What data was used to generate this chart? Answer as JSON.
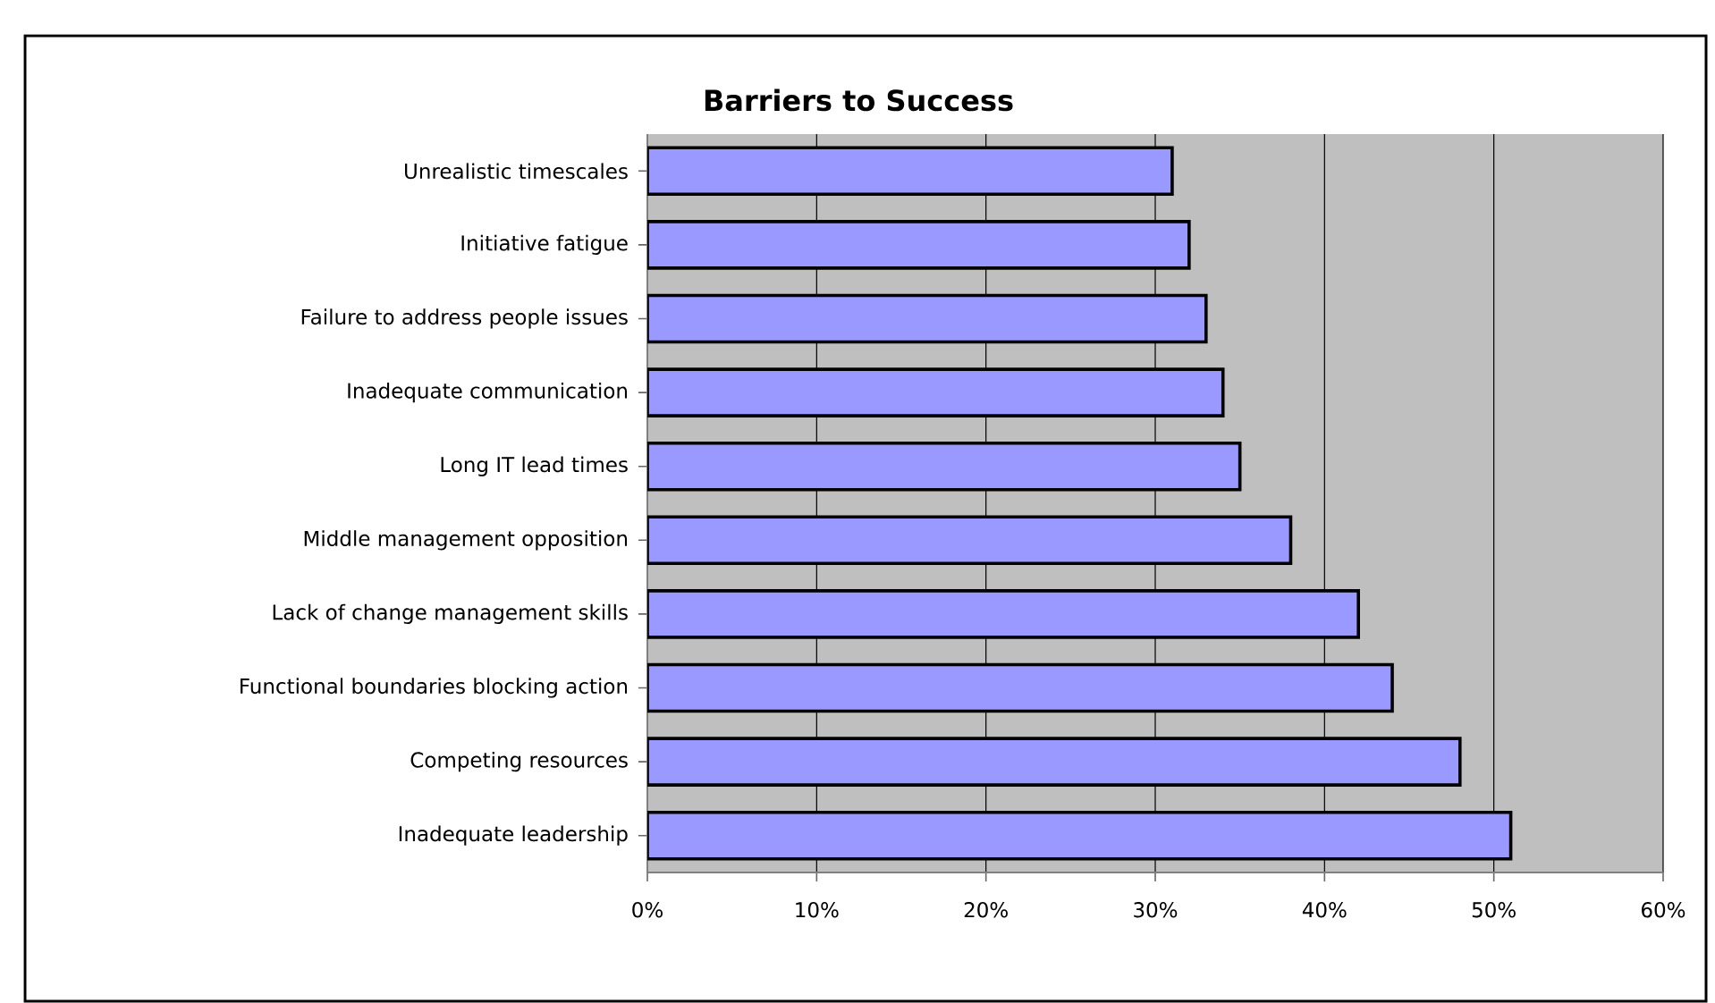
{
  "chart_data": {
    "type": "bar",
    "orientation": "horizontal",
    "title": "Barriers to Success",
    "categories": [
      "Unrealistic timescales",
      "Initiative fatigue",
      "Failure to address people issues",
      "Inadequate communication",
      "Long IT lead times",
      "Middle management opposition",
      "Lack of change management skills",
      "Functional boundaries blocking action",
      "Competing resources",
      "Inadequate leadership"
    ],
    "values": [
      31,
      32,
      33,
      34,
      35,
      38,
      42,
      44,
      48,
      51
    ],
    "color": "#9999ff",
    "xlim": [
      0,
      60
    ],
    "xticks": [
      {
        "value": 0,
        "label": "0%"
      },
      {
        "value": 10,
        "label": "10%"
      },
      {
        "value": 20,
        "label": "20%"
      },
      {
        "value": 30,
        "label": "30%"
      },
      {
        "value": 40,
        "label": "40%"
      },
      {
        "value": 50,
        "label": "50%"
      },
      {
        "value": 60,
        "label": "60%"
      }
    ],
    "grid": "x"
  }
}
